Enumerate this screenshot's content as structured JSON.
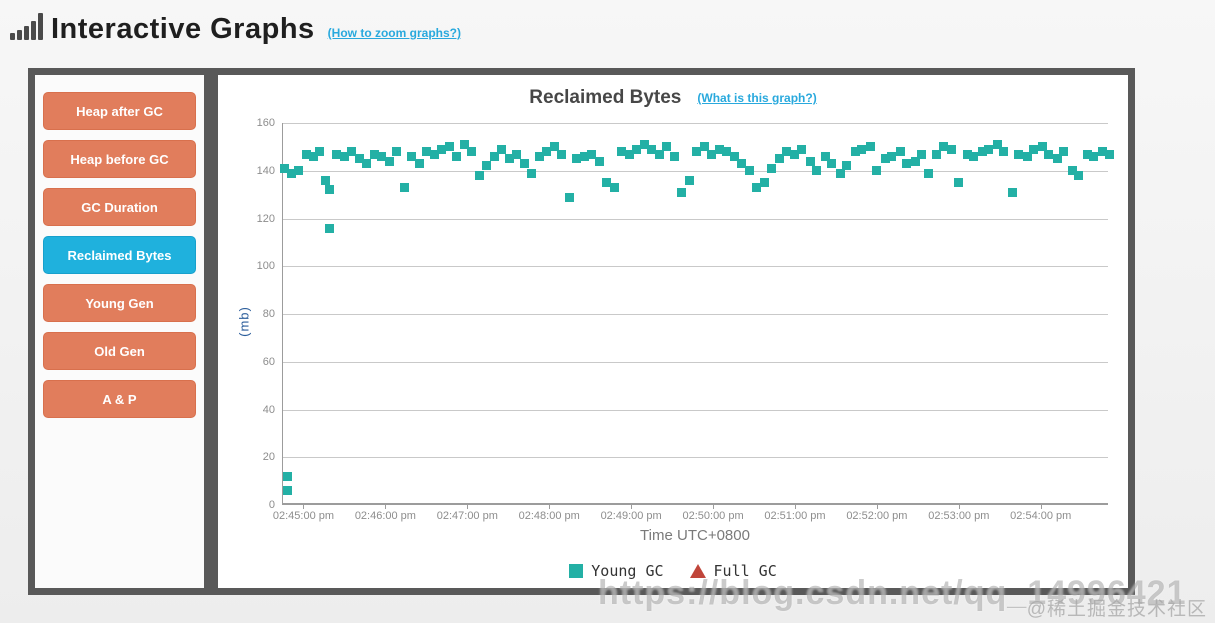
{
  "header": {
    "title": "Interactive Graphs",
    "zoom_link": "(How to zoom graphs?)",
    "logo_icon": "bar-chart-icon"
  },
  "sidebar": {
    "items": [
      {
        "label": "Heap after GC",
        "active": false
      },
      {
        "label": "Heap before GC",
        "active": false
      },
      {
        "label": "GC Duration",
        "active": false
      },
      {
        "label": "Reclaimed Bytes",
        "active": true
      },
      {
        "label": "Young Gen",
        "active": false
      },
      {
        "label": "Old Gen",
        "active": false
      },
      {
        "label": "A & P",
        "active": false
      }
    ]
  },
  "chart": {
    "title": "Reclaimed Bytes",
    "info_link": "(What is this graph?)"
  },
  "chart_data": {
    "type": "scatter",
    "title": "Reclaimed Bytes",
    "xlabel": "Time UTC+0800",
    "ylabel": "(mb)",
    "ylim": [
      0,
      160
    ],
    "yticks": [
      0,
      20,
      40,
      60,
      80,
      100,
      120,
      140,
      160
    ],
    "grid": "horizontal",
    "legend_position": "bottom",
    "x_domain_seconds": [
      -15,
      590
    ],
    "xticks": [
      {
        "t": 0,
        "label": "02:45:00 pm"
      },
      {
        "t": 60,
        "label": "02:46:00 pm"
      },
      {
        "t": 120,
        "label": "02:47:00 pm"
      },
      {
        "t": 180,
        "label": "02:48:00 pm"
      },
      {
        "t": 240,
        "label": "02:49:00 pm"
      },
      {
        "t": 300,
        "label": "02:50:00 pm"
      },
      {
        "t": 360,
        "label": "02:51:00 pm"
      },
      {
        "t": 420,
        "label": "02:52:00 pm"
      },
      {
        "t": 480,
        "label": "02:53:00 pm"
      },
      {
        "t": 540,
        "label": "02:54:00 pm"
      }
    ],
    "series": [
      {
        "name": "Young GC",
        "marker": "square",
        "color": "#23b0a5",
        "points": [
          [
            -14,
            141
          ],
          [
            -12,
            12
          ],
          [
            -12,
            6
          ],
          [
            -9,
            139
          ],
          [
            -4,
            140
          ],
          [
            2,
            147
          ],
          [
            7,
            146
          ],
          [
            12,
            148
          ],
          [
            16,
            136
          ],
          [
            19,
            132
          ],
          [
            19,
            116
          ],
          [
            24,
            147
          ],
          [
            30,
            146
          ],
          [
            35,
            148
          ],
          [
            41,
            145
          ],
          [
            46,
            143
          ],
          [
            52,
            147
          ],
          [
            57,
            146
          ],
          [
            63,
            144
          ],
          [
            68,
            148
          ],
          [
            74,
            133
          ],
          [
            79,
            146
          ],
          [
            85,
            143
          ],
          [
            90,
            148
          ],
          [
            96,
            147
          ],
          [
            101,
            149
          ],
          [
            107,
            150
          ],
          [
            112,
            146
          ],
          [
            118,
            151
          ],
          [
            123,
            148
          ],
          [
            129,
            138
          ],
          [
            134,
            142
          ],
          [
            140,
            146
          ],
          [
            145,
            149
          ],
          [
            151,
            145
          ],
          [
            156,
            147
          ],
          [
            162,
            143
          ],
          [
            167,
            139
          ],
          [
            173,
            146
          ],
          [
            178,
            148
          ],
          [
            184,
            150
          ],
          [
            189,
            147
          ],
          [
            195,
            129
          ],
          [
            200,
            145
          ],
          [
            206,
            146
          ],
          [
            211,
            147
          ],
          [
            217,
            144
          ],
          [
            222,
            135
          ],
          [
            228,
            133
          ],
          [
            233,
            148
          ],
          [
            239,
            147
          ],
          [
            244,
            149
          ],
          [
            250,
            151
          ],
          [
            255,
            149
          ],
          [
            261,
            147
          ],
          [
            266,
            150
          ],
          [
            272,
            146
          ],
          [
            277,
            131
          ],
          [
            283,
            136
          ],
          [
            288,
            148
          ],
          [
            294,
            150
          ],
          [
            299,
            147
          ],
          [
            305,
            149
          ],
          [
            310,
            148
          ],
          [
            316,
            146
          ],
          [
            321,
            143
          ],
          [
            327,
            140
          ],
          [
            332,
            133
          ],
          [
            338,
            135
          ],
          [
            343,
            141
          ],
          [
            349,
            145
          ],
          [
            354,
            148
          ],
          [
            360,
            147
          ],
          [
            365,
            149
          ],
          [
            371,
            144
          ],
          [
            376,
            140
          ],
          [
            382,
            146
          ],
          [
            387,
            143
          ],
          [
            393,
            139
          ],
          [
            398,
            142
          ],
          [
            404,
            148
          ],
          [
            409,
            149
          ],
          [
            415,
            150
          ],
          [
            420,
            140
          ],
          [
            426,
            145
          ],
          [
            431,
            146
          ],
          [
            437,
            148
          ],
          [
            442,
            143
          ],
          [
            448,
            144
          ],
          [
            453,
            147
          ],
          [
            458,
            139
          ],
          [
            464,
            147
          ],
          [
            469,
            150
          ],
          [
            475,
            149
          ],
          [
            480,
            135
          ],
          [
            486,
            147
          ],
          [
            491,
            146
          ],
          [
            497,
            148
          ],
          [
            502,
            149
          ],
          [
            508,
            151
          ],
          [
            513,
            148
          ],
          [
            519,
            131
          ],
          [
            524,
            147
          ],
          [
            530,
            146
          ],
          [
            535,
            149
          ],
          [
            541,
            150
          ],
          [
            546,
            147
          ],
          [
            552,
            145
          ],
          [
            557,
            148
          ],
          [
            563,
            140
          ],
          [
            568,
            138
          ],
          [
            574,
            147
          ],
          [
            579,
            146
          ],
          [
            585,
            148
          ],
          [
            590,
            147
          ]
        ]
      },
      {
        "name": "Full GC",
        "marker": "triangle",
        "color": "#c0453a",
        "points": []
      }
    ]
  },
  "watermark": {
    "url_text": "https://blog.csdn.net/qq_14996421",
    "community_text": "@稀土掘金技术社区"
  },
  "colors": {
    "accent_link": "#29a9dd",
    "button": "#e17d5c",
    "button_active": "#1fb1dd",
    "panel_border": "#595959",
    "young_gc": "#23b0a5",
    "full_gc": "#c0453a",
    "y_axis_title": "#2b5d9b"
  }
}
